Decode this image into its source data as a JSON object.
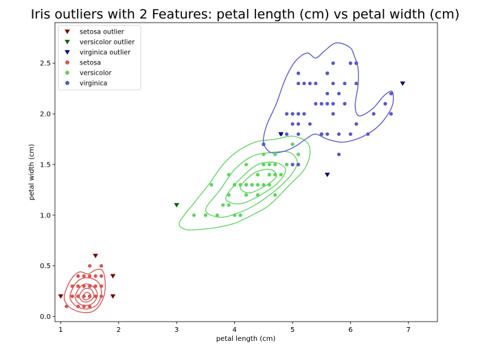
{
  "chart_data": {
    "type": "scatter",
    "title": "Iris outliers with 2 Features: petal length (cm) vs petal width (cm)",
    "xlabel": "petal length (cm)",
    "ylabel": "petal width (cm)",
    "xlim": [
      0.9,
      7.5
    ],
    "ylim": [
      -0.05,
      2.9
    ],
    "xticks": [
      1,
      2,
      3,
      4,
      5,
      6,
      7
    ],
    "yticks": [
      0.0,
      0.5,
      1.0,
      1.5,
      2.0,
      2.5
    ],
    "ytick_labels": [
      "0.0",
      "0.5",
      "1.0",
      "1.5",
      "2.0",
      "2.5"
    ],
    "legend_position": "top-left",
    "series": [
      {
        "name": "setosa outlier",
        "marker": "triangle-down",
        "color": "#7b0000",
        "points": [
          [
            1.0,
            0.2
          ],
          [
            1.6,
            0.6
          ],
          [
            1.9,
            0.4
          ],
          [
            1.9,
            0.2
          ]
        ]
      },
      {
        "name": "versicolor outlier",
        "marker": "triangle-down",
        "color": "#006400",
        "points": [
          [
            3.0,
            1.1
          ]
        ]
      },
      {
        "name": "virginica outlier",
        "marker": "triangle-down",
        "color": "#00008b",
        "points": [
          [
            4.8,
            1.8
          ],
          [
            5.6,
            1.4
          ],
          [
            6.9,
            2.3
          ]
        ]
      },
      {
        "name": "setosa",
        "marker": "circle",
        "color": "#d9534f",
        "points": [
          [
            1.4,
            0.2
          ],
          [
            1.3,
            0.2
          ],
          [
            1.5,
            0.2
          ],
          [
            1.7,
            0.4
          ],
          [
            1.4,
            0.3
          ],
          [
            1.5,
            0.1
          ],
          [
            1.6,
            0.2
          ],
          [
            1.1,
            0.1
          ],
          [
            1.2,
            0.2
          ],
          [
            1.5,
            0.4
          ],
          [
            1.3,
            0.4
          ],
          [
            1.7,
            0.3
          ],
          [
            1.5,
            0.3
          ],
          [
            1.6,
            0.4
          ],
          [
            1.4,
            0.1
          ],
          [
            1.2,
            0.3
          ],
          [
            1.3,
            0.3
          ],
          [
            1.5,
            0.5
          ],
          [
            1.7,
            0.5
          ],
          [
            1.6,
            0.3
          ],
          [
            1.4,
            0.4
          ],
          [
            1.3,
            0.1
          ],
          [
            1.5,
            0.2
          ],
          [
            1.7,
            0.2
          ],
          [
            1.6,
            0.2
          ],
          [
            1.4,
            0.2
          ],
          [
            1.2,
            0.2
          ],
          [
            1.3,
            0.2
          ]
        ]
      },
      {
        "name": "versicolor",
        "marker": "circle",
        "color": "#5cd65c",
        "points": [
          [
            4.7,
            1.4
          ],
          [
            4.5,
            1.5
          ],
          [
            4.9,
            1.5
          ],
          [
            4.0,
            1.3
          ],
          [
            4.6,
            1.5
          ],
          [
            4.5,
            1.3
          ],
          [
            3.3,
            1.0
          ],
          [
            4.6,
            1.3
          ],
          [
            3.9,
            1.4
          ],
          [
            3.5,
            1.0
          ],
          [
            4.2,
            1.5
          ],
          [
            4.0,
            1.0
          ],
          [
            4.7,
            1.4
          ],
          [
            3.6,
            1.3
          ],
          [
            4.4,
            1.4
          ],
          [
            4.1,
            1.0
          ],
          [
            4.5,
            1.5
          ],
          [
            3.9,
            1.1
          ],
          [
            4.8,
            1.8
          ],
          [
            4.0,
            1.3
          ],
          [
            4.9,
            1.5
          ],
          [
            4.7,
            1.2
          ],
          [
            4.3,
            1.3
          ],
          [
            4.4,
            1.4
          ],
          [
            5.0,
            1.7
          ],
          [
            4.5,
            1.5
          ],
          [
            3.8,
            1.1
          ],
          [
            3.7,
            1.0
          ],
          [
            3.9,
            1.2
          ],
          [
            5.1,
            1.6
          ],
          [
            4.5,
            1.6
          ],
          [
            4.7,
            1.5
          ],
          [
            4.4,
            1.3
          ],
          [
            4.1,
            1.3
          ],
          [
            4.0,
            1.3
          ],
          [
            4.4,
            1.2
          ],
          [
            4.6,
            1.4
          ],
          [
            4.2,
            1.2
          ],
          [
            4.2,
            1.3
          ],
          [
            4.3,
            1.3
          ],
          [
            4.1,
            1.3
          ],
          [
            4.8,
            1.4
          ],
          [
            4.9,
            1.5
          ],
          [
            5.0,
            1.5
          ],
          [
            5.1,
            1.5
          ],
          [
            4.5,
            1.7
          ],
          [
            4.7,
            1.6
          ],
          [
            4.6,
            1.4
          ],
          [
            4.8,
            1.4
          ],
          [
            4.2,
            1.3
          ]
        ]
      },
      {
        "name": "virginica",
        "marker": "circle",
        "color": "#5555d9",
        "points": [
          [
            6.0,
            2.5
          ],
          [
            5.1,
            1.9
          ],
          [
            5.9,
            2.1
          ],
          [
            5.6,
            1.8
          ],
          [
            5.8,
            2.2
          ],
          [
            6.6,
            2.1
          ],
          [
            4.5,
            1.7
          ],
          [
            6.3,
            1.8
          ],
          [
            5.8,
            1.8
          ],
          [
            6.1,
            2.5
          ],
          [
            5.1,
            2.0
          ],
          [
            5.3,
            1.9
          ],
          [
            5.5,
            2.1
          ],
          [
            5.0,
            2.0
          ],
          [
            5.1,
            2.4
          ],
          [
            5.3,
            2.3
          ],
          [
            5.5,
            1.8
          ],
          [
            6.7,
            2.2
          ],
          [
            5.0,
            1.5
          ],
          [
            5.7,
            2.3
          ],
          [
            4.9,
            2.0
          ],
          [
            6.7,
            2.0
          ],
          [
            4.9,
            1.8
          ],
          [
            5.7,
            2.1
          ],
          [
            6.0,
            1.8
          ],
          [
            5.6,
            2.1
          ],
          [
            5.8,
            1.6
          ],
          [
            6.1,
            1.9
          ],
          [
            6.4,
            2.0
          ],
          [
            5.6,
            2.2
          ],
          [
            5.1,
            1.5
          ],
          [
            6.1,
            2.3
          ],
          [
            5.6,
            2.4
          ],
          [
            5.5,
            1.8
          ],
          [
            4.8,
            1.8
          ],
          [
            5.4,
            2.1
          ],
          [
            5.6,
            2.4
          ],
          [
            5.1,
            2.3
          ],
          [
            5.9,
            2.3
          ],
          [
            5.7,
            2.5
          ],
          [
            5.2,
            2.3
          ],
          [
            5.0,
            1.9
          ],
          [
            5.2,
            2.0
          ],
          [
            5.4,
            2.3
          ],
          [
            5.1,
            1.8
          ],
          [
            5.7,
            2.0
          ],
          [
            6.1,
            2.5
          ]
        ]
      }
    ],
    "density_contours": [
      {
        "name": "setosa",
        "color": "#d9534f",
        "levels": [
          [
            [
              1.06,
              0.2
            ],
            [
              1.17,
              0.36
            ],
            [
              1.32,
              0.44
            ],
            [
              1.47,
              0.42
            ],
            [
              1.6,
              0.46
            ],
            [
              1.71,
              0.46
            ],
            [
              1.76,
              0.38
            ],
            [
              1.76,
              0.24
            ],
            [
              1.68,
              0.12
            ],
            [
              1.55,
              0.05
            ],
            [
              1.4,
              0.04
            ],
            [
              1.25,
              0.06
            ],
            [
              1.12,
              0.11
            ]
          ],
          [
            [
              1.16,
              0.2
            ],
            [
              1.26,
              0.33
            ],
            [
              1.4,
              0.38
            ],
            [
              1.56,
              0.37
            ],
            [
              1.67,
              0.32
            ],
            [
              1.7,
              0.22
            ],
            [
              1.63,
              0.12
            ],
            [
              1.5,
              0.08
            ],
            [
              1.36,
              0.08
            ],
            [
              1.23,
              0.12
            ]
          ],
          [
            [
              1.25,
              0.2
            ],
            [
              1.35,
              0.3
            ],
            [
              1.48,
              0.32
            ],
            [
              1.6,
              0.27
            ],
            [
              1.63,
              0.2
            ],
            [
              1.55,
              0.13
            ],
            [
              1.43,
              0.11
            ],
            [
              1.31,
              0.13
            ]
          ],
          [
            [
              1.32,
              0.2
            ],
            [
              1.4,
              0.27
            ],
            [
              1.52,
              0.27
            ],
            [
              1.57,
              0.2
            ],
            [
              1.49,
              0.15
            ],
            [
              1.38,
              0.15
            ]
          ],
          [
            [
              1.38,
              0.2
            ],
            [
              1.45,
              0.24
            ],
            [
              1.52,
              0.21
            ],
            [
              1.47,
              0.17
            ],
            [
              1.4,
              0.17
            ]
          ]
        ]
      },
      {
        "name": "versicolor",
        "color": "#5cd65c",
        "levels": [
          [
            [
              3.05,
              0.93
            ],
            [
              3.3,
              1.12
            ],
            [
              3.55,
              1.3
            ],
            [
              3.8,
              1.5
            ],
            [
              4.05,
              1.63
            ],
            [
              4.35,
              1.72
            ],
            [
              4.7,
              1.75
            ],
            [
              5.0,
              1.78
            ],
            [
              5.25,
              1.72
            ],
            [
              5.3,
              1.6
            ],
            [
              5.2,
              1.45
            ],
            [
              4.95,
              1.3
            ],
            [
              4.6,
              1.1
            ],
            [
              4.3,
              1.0
            ],
            [
              4.0,
              0.92
            ],
            [
              3.7,
              0.88
            ],
            [
              3.4,
              0.86
            ],
            [
              3.15,
              0.86
            ]
          ],
          [
            [
              3.5,
              1.05
            ],
            [
              3.75,
              1.25
            ],
            [
              4.0,
              1.45
            ],
            [
              4.3,
              1.58
            ],
            [
              4.65,
              1.62
            ],
            [
              4.95,
              1.62
            ],
            [
              5.08,
              1.52
            ],
            [
              4.95,
              1.38
            ],
            [
              4.65,
              1.22
            ],
            [
              4.35,
              1.1
            ],
            [
              4.05,
              1.02
            ],
            [
              3.75,
              0.98
            ]
          ],
          [
            [
              3.85,
              1.18
            ],
            [
              4.1,
              1.36
            ],
            [
              4.4,
              1.5
            ],
            [
              4.7,
              1.52
            ],
            [
              4.88,
              1.45
            ],
            [
              4.75,
              1.32
            ],
            [
              4.45,
              1.2
            ],
            [
              4.15,
              1.12
            ],
            [
              3.95,
              1.12
            ]
          ],
          [
            [
              4.1,
              1.28
            ],
            [
              4.35,
              1.42
            ],
            [
              4.62,
              1.45
            ],
            [
              4.72,
              1.38
            ],
            [
              4.5,
              1.28
            ],
            [
              4.25,
              1.22
            ]
          ]
        ]
      },
      {
        "name": "virginica",
        "color": "#5555d9",
        "levels": [
          [
            [
              4.5,
              1.72
            ],
            [
              4.55,
              1.88
            ],
            [
              4.72,
              2.1
            ],
            [
              4.88,
              2.35
            ],
            [
              5.05,
              2.52
            ],
            [
              5.25,
              2.6
            ],
            [
              5.4,
              2.55
            ],
            [
              5.55,
              2.62
            ],
            [
              5.75,
              2.7
            ],
            [
              5.98,
              2.66
            ],
            [
              6.06,
              2.58
            ],
            [
              6.13,
              2.45
            ],
            [
              6.13,
              2.28
            ],
            [
              6.08,
              2.08
            ],
            [
              6.15,
              1.98
            ],
            [
              6.38,
              2.05
            ],
            [
              6.58,
              2.18
            ],
            [
              6.72,
              2.22
            ],
            [
              6.72,
              2.08
            ],
            [
              6.55,
              1.92
            ],
            [
              6.35,
              1.82
            ],
            [
              6.1,
              1.75
            ],
            [
              5.85,
              1.72
            ],
            [
              5.6,
              1.75
            ],
            [
              5.4,
              1.8
            ],
            [
              5.25,
              1.76
            ],
            [
              5.05,
              1.68
            ],
            [
              4.85,
              1.63
            ],
            [
              4.62,
              1.62
            ]
          ]
        ]
      }
    ]
  }
}
